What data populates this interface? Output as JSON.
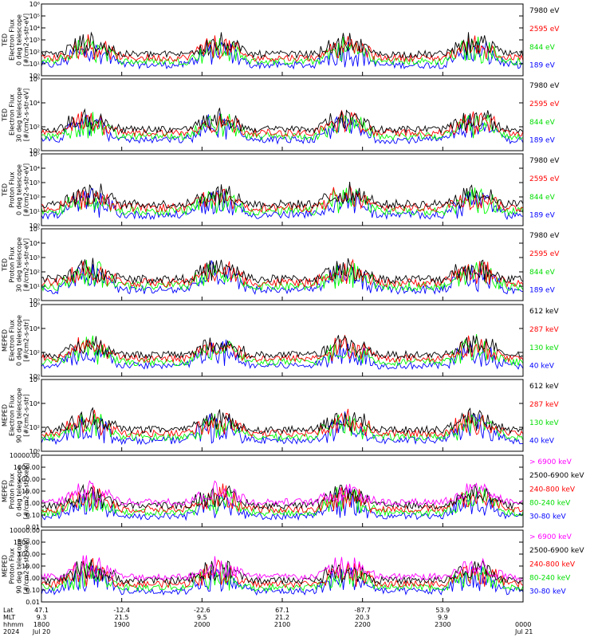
{
  "colors": {
    "blue": "#0000ff",
    "red": "#ff0000",
    "green": "#00ff00",
    "black": "#000000",
    "magenta": "#ff00ff"
  },
  "chart_data": [
    {
      "type": "line",
      "ylabel_lines": [
        "TED",
        "Electron Flux",
        "0 deg telescope",
        "[#/cm2-s-str-eV]"
      ],
      "scale": "log",
      "ylim": [
        1,
        1000000
      ],
      "ytick_labels": [
        "10⁰",
        "10¹",
        "10²",
        "10³",
        "10⁴",
        "10⁵",
        "10⁶"
      ],
      "legend": [
        {
          "label": "7980 eV",
          "color": "#000000"
        },
        {
          "label": "2595 eV",
          "color": "#ff0000"
        },
        {
          "label": "844 eV",
          "color": "#00ff00"
        },
        {
          "label": "189 eV",
          "color": "#0000ff"
        }
      ]
    },
    {
      "type": "line",
      "ylabel_lines": [
        "TED",
        "Electron Flux",
        "30 deg telescope",
        "[#/cm2-s-str-eV]"
      ],
      "scale": "log",
      "ylim": [
        1,
        1000000
      ],
      "ytick_labels": [
        "10⁰",
        "10²",
        "10⁴",
        "10⁶"
      ],
      "legend": [
        {
          "label": "7980 eV",
          "color": "#000000"
        },
        {
          "label": "2595 eV",
          "color": "#ff0000"
        },
        {
          "label": "844 eV",
          "color": "#00ff00"
        },
        {
          "label": "189 eV",
          "color": "#0000ff"
        }
      ]
    },
    {
      "type": "line",
      "ylabel_lines": [
        "TED",
        "Proton Flux",
        "0 deg telescope",
        "[#/cm2-s-str-eV]"
      ],
      "scale": "log",
      "ylim": [
        1,
        100000
      ],
      "ytick_labels": [
        "10⁰",
        "10¹",
        "10²",
        "10³",
        "10⁴",
        "10⁵"
      ],
      "legend": [
        {
          "label": "7980 eV",
          "color": "#000000"
        },
        {
          "label": "2595 eV",
          "color": "#ff0000"
        },
        {
          "label": "844 eV",
          "color": "#00ff00"
        },
        {
          "label": "189 eV",
          "color": "#0000ff"
        }
      ]
    },
    {
      "type": "line",
      "ylabel_lines": [
        "TED",
        "Proton Flux",
        "30 deg telescope",
        "[#/cm2-s-str-eV]"
      ],
      "scale": "log",
      "ylim": [
        1,
        100000
      ],
      "ytick_labels": [
        "10⁰",
        "10¹",
        "10²",
        "10³",
        "10⁴",
        "10⁵"
      ],
      "legend": [
        {
          "label": "7980 eV",
          "color": "#000000"
        },
        {
          "label": "2595 eV",
          "color": "#ff0000"
        },
        {
          "label": "844 eV",
          "color": "#00ff00"
        },
        {
          "label": "189 eV",
          "color": "#0000ff"
        }
      ]
    },
    {
      "type": "line",
      "ylabel_lines": [
        "MEPED",
        "Electron Flux",
        "0 deg telescope",
        "[#/cm2-s-str]"
      ],
      "scale": "log",
      "ylim": [
        1,
        1000000
      ],
      "ytick_labels": [
        "10⁰",
        "10²",
        "10⁴",
        "10⁶"
      ],
      "legend": [
        {
          "label": "612 keV",
          "color": "#000000"
        },
        {
          "label": "287 keV",
          "color": "#ff0000"
        },
        {
          "label": "130 keV",
          "color": "#00ff00"
        },
        {
          "label": "40 keV",
          "color": "#0000ff"
        }
      ]
    },
    {
      "type": "line",
      "ylabel_lines": [
        "MEPED",
        "Electron Flux",
        "90 deg telescope",
        "[#/cm2-s-str]"
      ],
      "scale": "log",
      "ylim": [
        1,
        1000000
      ],
      "ytick_labels": [
        "10⁰",
        "10²",
        "10⁴",
        "10⁶"
      ],
      "legend": [
        {
          "label": "612 keV",
          "color": "#000000"
        },
        {
          "label": "287 keV",
          "color": "#ff0000"
        },
        {
          "label": "130 keV",
          "color": "#00ff00"
        },
        {
          "label": "40 keV",
          "color": "#0000ff"
        }
      ]
    },
    {
      "type": "line",
      "ylabel_lines": [
        "MEPED",
        "Proton Flux",
        "0 deg telescope",
        "[#/cm2-s-str-keV]"
      ],
      "scale": "log",
      "ylim": [
        0.01,
        10000
      ],
      "ytick_labels": [
        "0.01",
        "0.10",
        "1.00",
        "10.00",
        "100.00",
        "1000.00",
        "10000.00"
      ],
      "legend": [
        {
          "label": "> 6900 keV",
          "color": "#ff00ff"
        },
        {
          "label": "2500-6900 keV",
          "color": "#000000"
        },
        {
          "label": "240-800 keV",
          "color": "#ff0000"
        },
        {
          "label": "80-240 keV",
          "color": "#00ff00"
        },
        {
          "label": "30-80 keV",
          "color": "#0000ff"
        }
      ]
    },
    {
      "type": "line",
      "ylabel_lines": [
        "MEPED",
        "Proton Flux",
        "90 deg telescope",
        "[#/cm2-s-str-keV]"
      ],
      "scale": "log",
      "ylim": [
        0.01,
        10000
      ],
      "ytick_labels": [
        "0.01",
        "0.10",
        "1.00",
        "10.00",
        "100.00",
        "1000.00",
        "10000.00"
      ],
      "legend": [
        {
          "label": "> 6900 keV",
          "color": "#ff00ff"
        },
        {
          "label": "2500-6900 keV",
          "color": "#000000"
        },
        {
          "label": "240-800 keV",
          "color": "#ff0000"
        },
        {
          "label": "80-240 keV",
          "color": "#00ff00"
        },
        {
          "label": "30-80 keV",
          "color": "#0000ff"
        }
      ]
    }
  ],
  "x_axis": {
    "row_labels": [
      "Lat",
      "MLT",
      "hhmm",
      "2024"
    ],
    "range_hours": [
      18,
      24
    ],
    "ticks": [
      {
        "hour": 18,
        "lat": "47.1",
        "mlt": "9.3",
        "hhmm": "1800",
        "date": "Jul 20"
      },
      {
        "hour": 19,
        "lat": "-12.4",
        "mlt": "21.5",
        "hhmm": "1900",
        "date": ""
      },
      {
        "hour": 20,
        "lat": "-22.6",
        "mlt": "9.5",
        "hhmm": "2000",
        "date": ""
      },
      {
        "hour": 21,
        "lat": "67.1",
        "mlt": "21.2",
        "hhmm": "2100",
        "date": ""
      },
      {
        "hour": 22,
        "lat": "-87.7",
        "mlt": "20.3",
        "hhmm": "2200",
        "date": ""
      },
      {
        "hour": 23,
        "lat": "53.9",
        "mlt": "9.9",
        "hhmm": "2300",
        "date": ""
      },
      {
        "hour": 24,
        "lat": "",
        "mlt": "",
        "hhmm": "0000",
        "date": "Jul 21"
      }
    ]
  }
}
